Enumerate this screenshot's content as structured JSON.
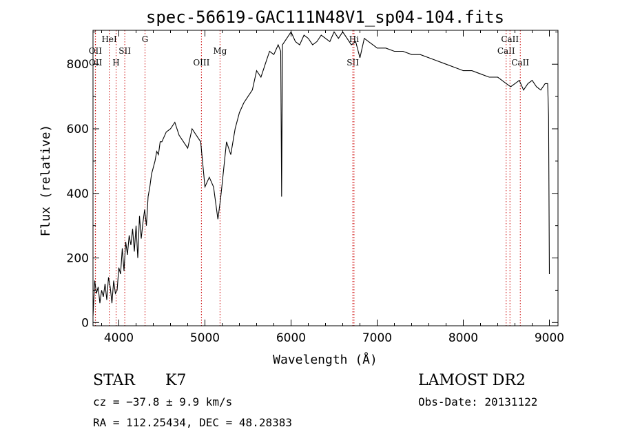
{
  "chart_data": {
    "type": "line",
    "title": "spec-56619-GAC111N48V1_sp04-104.fits",
    "xlabel": "Wavelength (Å)",
    "ylabel": "Flux (relative)",
    "xlim": [
      3700,
      9100
    ],
    "ylim": [
      -10,
      905
    ],
    "x_ticks": [
      4000,
      5000,
      6000,
      7000,
      8000,
      9000
    ],
    "y_ticks": [
      0,
      200,
      400,
      600,
      800
    ],
    "grid": false,
    "line_color": "#000000",
    "marker_color": "#cc0000",
    "spectrum": {
      "x": [
        3700,
        3720,
        3740,
        3760,
        3780,
        3800,
        3820,
        3840,
        3860,
        3880,
        3900,
        3920,
        3940,
        3960,
        3980,
        4000,
        4020,
        4040,
        4060,
        4080,
        4100,
        4120,
        4140,
        4160,
        4180,
        4200,
        4220,
        4240,
        4260,
        4280,
        4300,
        4320,
        4340,
        4360,
        4380,
        4400,
        4420,
        4440,
        4460,
        4480,
        4500,
        4550,
        4600,
        4650,
        4700,
        4750,
        4800,
        4850,
        4900,
        4950,
        5000,
        5050,
        5100,
        5150,
        5180,
        5200,
        5250,
        5300,
        5350,
        5400,
        5450,
        5500,
        5550,
        5600,
        5650,
        5700,
        5750,
        5800,
        5850,
        5880,
        5890,
        5900,
        5950,
        6000,
        6050,
        6100,
        6150,
        6200,
        6250,
        6300,
        6350,
        6400,
        6450,
        6500,
        6550,
        6600,
        6650,
        6700,
        6750,
        6800,
        6850,
        6900,
        6950,
        7000,
        7100,
        7200,
        7300,
        7400,
        7500,
        7600,
        7700,
        7800,
        7900,
        8000,
        8100,
        8200,
        8300,
        8400,
        8500,
        8550,
        8600,
        8650,
        8700,
        8750,
        8800,
        8850,
        8900,
        8950,
        8980,
        8990,
        9000
      ],
      "y": [
        20,
        130,
        90,
        110,
        60,
        100,
        80,
        120,
        70,
        140,
        110,
        60,
        130,
        90,
        100,
        170,
        150,
        230,
        160,
        250,
        210,
        270,
        240,
        290,
        220,
        300,
        200,
        330,
        260,
        310,
        350,
        300,
        390,
        420,
        460,
        480,
        500,
        530,
        520,
        560,
        560,
        590,
        600,
        620,
        580,
        560,
        540,
        600,
        580,
        560,
        420,
        450,
        420,
        320,
        380,
        430,
        560,
        520,
        600,
        650,
        680,
        700,
        720,
        780,
        760,
        800,
        840,
        830,
        860,
        840,
        390,
        860,
        880,
        900,
        870,
        860,
        890,
        880,
        860,
        870,
        890,
        880,
        870,
        900,
        880,
        900,
        880,
        860,
        870,
        820,
        880,
        870,
        860,
        850,
        850,
        840,
        840,
        830,
        830,
        820,
        810,
        800,
        790,
        780,
        780,
        770,
        760,
        760,
        740,
        730,
        740,
        750,
        720,
        740,
        750,
        730,
        720,
        740,
        740,
        640,
        150
      ]
    },
    "line_markers": [
      {
        "label": "OII",
        "x": 3727,
        "row": 1
      },
      {
        "label": "OII",
        "x": 3729,
        "row": 2
      },
      {
        "label": "HeI",
        "x": 3889,
        "row": 0
      },
      {
        "label": "H",
        "x": 3968,
        "row": 2
      },
      {
        "label": "SII",
        "x": 4069,
        "row": 1
      },
      {
        "label": "G",
        "x": 4304,
        "row": 0
      },
      {
        "label": "OIII",
        "x": 4959,
        "row": 2
      },
      {
        "label": "Mg",
        "x": 5175,
        "row": 1
      },
      {
        "label": "SII",
        "x": 6717,
        "row": 2
      },
      {
        "label": "Hi",
        "x": 6731,
        "row": 0
      },
      {
        "label": "CaII",
        "x": 8498,
        "row": 1
      },
      {
        "label": "CaII",
        "x": 8542,
        "row": 0
      },
      {
        "label": "CaII",
        "x": 8662,
        "row": 2
      }
    ]
  },
  "info": {
    "class_label": "STAR",
    "subclass_label": "K7",
    "survey_label": "LAMOST DR2",
    "cz_text": "cz = −37.8 ± 9.9 km/s",
    "obs_date_text": "Obs-Date: 20131122",
    "radec_text": "RA = 112.25434, DEC =  48.28383"
  }
}
